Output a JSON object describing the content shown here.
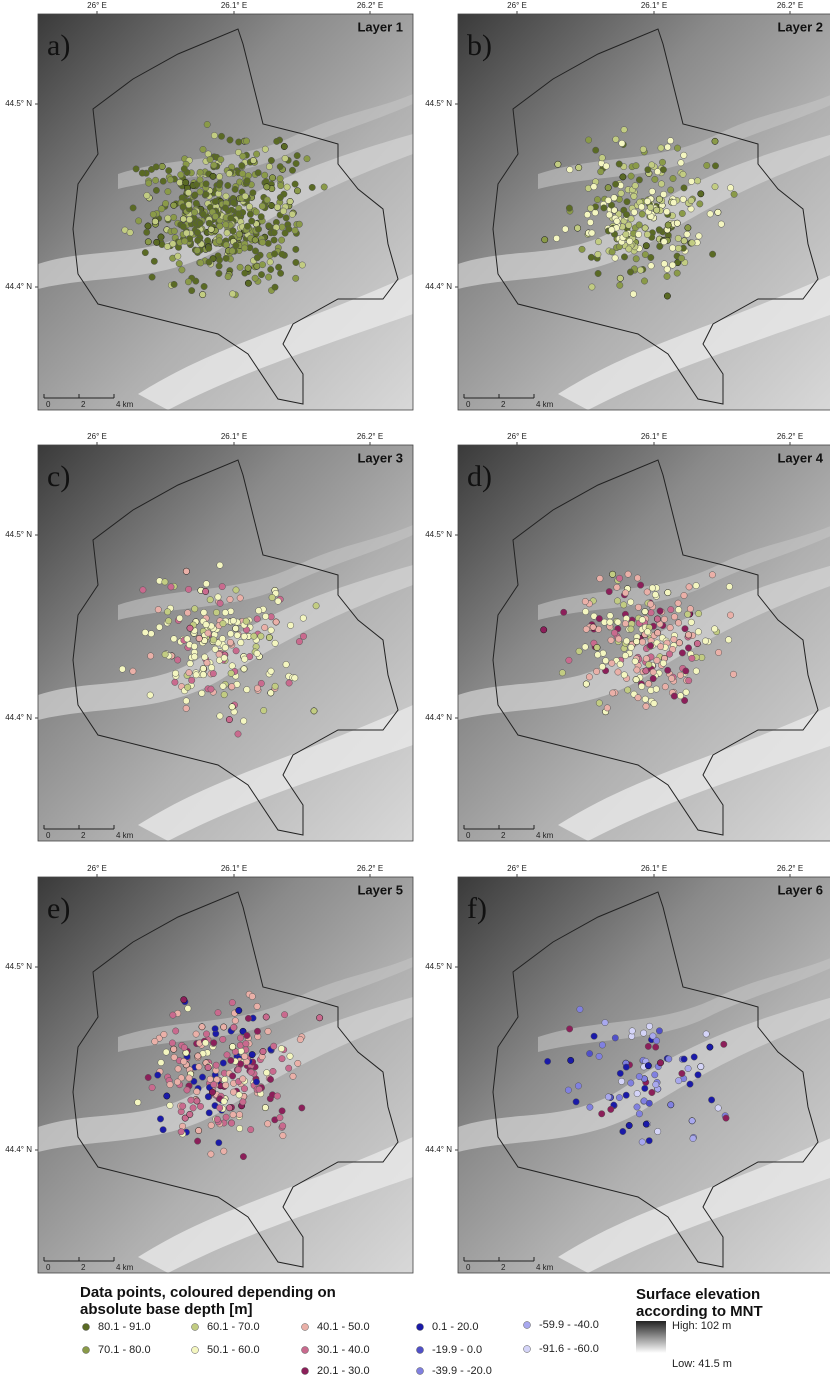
{
  "axis_labels": {
    "x": [
      "26° E",
      "26.1° E",
      "26.2° E"
    ],
    "y": [
      "44.5° N",
      "44.4° N"
    ]
  },
  "scale_bar": [
    "0",
    "2",
    "4 km"
  ],
  "panels": [
    {
      "label": "a)",
      "title": "Layer 1"
    },
    {
      "label": "b)",
      "title": "Layer 2"
    },
    {
      "label": "c)",
      "title": "Layer 3"
    },
    {
      "label": "d)",
      "title": "Layer 4"
    },
    {
      "label": "e)",
      "title": "Layer 5"
    },
    {
      "label": "f)",
      "title": "Layer 6"
    }
  ],
  "legend": {
    "title": [
      "Data points, coloured depending on",
      "absolute base depth [m]"
    ],
    "classes": [
      {
        "label": "80.1 - 91.0",
        "color": "#5a6a24"
      },
      {
        "label": "70.1 - 80.0",
        "color": "#8a9a48"
      },
      {
        "label": "60.1 - 70.0",
        "color": "#c2cc82"
      },
      {
        "label": "50.1 - 60.0",
        "color": "#f4f6c0"
      },
      {
        "label": "40.1 - 50.0",
        "color": "#eab0a8"
      },
      {
        "label": "30.1 - 40.0",
        "color": "#c96a8e"
      },
      {
        "label": "20.1 - 30.0",
        "color": "#8c1f5a"
      },
      {
        "label": "0.1 - 20.0",
        "color": "#1a1aa8"
      },
      {
        "label": "-19.9 - 0.0",
        "color": "#5050c8"
      },
      {
        "label": "-39.9 - -20.0",
        "color": "#8080e0"
      },
      {
        "label": "-59.9 - -40.0",
        "color": "#a8a8ee"
      },
      {
        "label": "-91.6 - -60.0",
        "color": "#d4d4f8"
      }
    ]
  },
  "elevation_legend": {
    "title": [
      "Surface elevation",
      "according to MNT"
    ],
    "high": "High: 102 m",
    "low": "Low: 41.5 m"
  }
}
